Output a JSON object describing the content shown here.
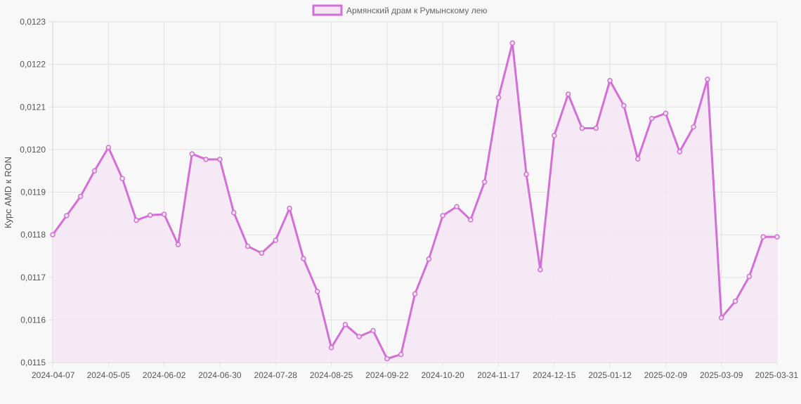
{
  "chart_data": {
    "type": "line",
    "title": "",
    "xlabel": "",
    "ylabel": "Курс AMD к RON",
    "legend": {
      "placement": "top-center",
      "entries": [
        "Армянский драм к Румынскому лею"
      ]
    },
    "grid": true,
    "fill": true,
    "colors": {
      "line": "#d36fd6",
      "fill": "#f5e6f4",
      "grid": "#e2e2e2",
      "text": "#555555",
      "background": "#f8f8f8"
    },
    "ylim": [
      0.0115,
      0.0123
    ],
    "yticks": [
      "0,0115",
      "0,0116",
      "0,0117",
      "0,0118",
      "0,0119",
      "0,0120",
      "0,0121",
      "0,0122",
      "0,0123"
    ],
    "xticks": [
      "2024-04-07",
      "2024-05-05",
      "2024-06-02",
      "2024-06-30",
      "2024-07-28",
      "2024-08-25",
      "2024-09-22",
      "2024-10-20",
      "2024-11-17",
      "2024-12-15",
      "2025-01-12",
      "2025-02-09",
      "2025-03-09",
      "2025-03-31"
    ],
    "series": [
      {
        "name": "Армянский драм к Румынскому лею",
        "values": [
          0.0118,
          0.011845,
          0.01189,
          0.01195,
          0.012005,
          0.011932,
          0.011834,
          0.011846,
          0.011848,
          0.011777,
          0.01199,
          0.011977,
          0.011977,
          0.011852,
          0.011773,
          0.011757,
          0.011787,
          0.011862,
          0.011744,
          0.011667,
          0.011535,
          0.011589,
          0.011561,
          0.011575,
          0.011509,
          0.011519,
          0.011661,
          0.011743,
          0.011845,
          0.011866,
          0.011835,
          0.011924,
          0.012122,
          0.01225,
          0.011942,
          0.011718,
          0.012033,
          0.01213,
          0.01205,
          0.01205,
          0.012162,
          0.012103,
          0.011978,
          0.012073,
          0.012085,
          0.011995,
          0.012053,
          0.012165,
          0.011605,
          0.011644,
          0.011702,
          0.011795,
          0.011795
        ]
      }
    ]
  }
}
